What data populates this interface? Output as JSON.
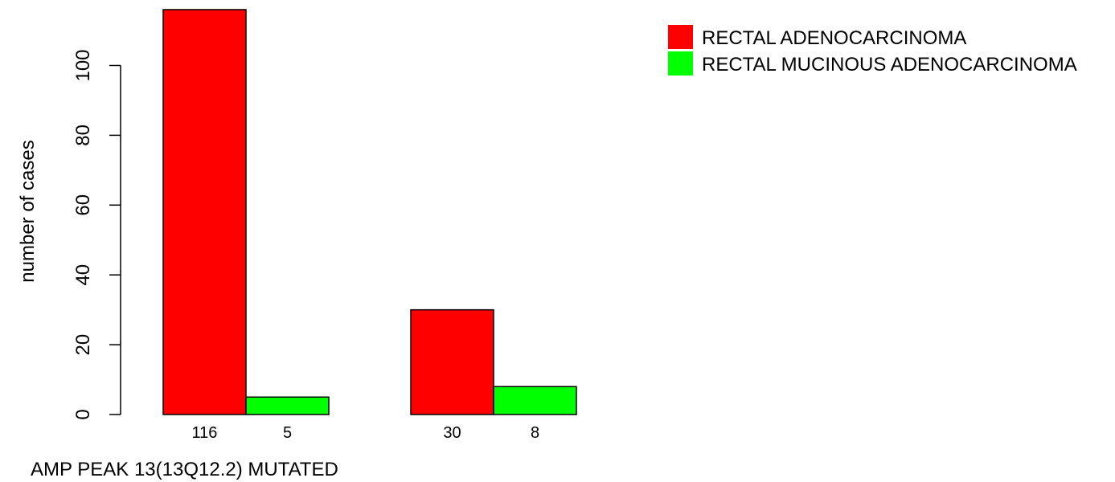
{
  "chart_data": {
    "type": "bar",
    "title": "",
    "xlabel": "AMP PEAK 13(13Q12.2) MUTATED",
    "ylabel": "number of cases",
    "ylim": [
      0,
      116
    ],
    "yticks": [
      0,
      20,
      40,
      60,
      80,
      100
    ],
    "grid": false,
    "legend_position": "top-right",
    "groups": [
      {
        "bars": [
          {
            "series": "RECTAL ADENOCARCINOMA",
            "value": 116,
            "label": "116"
          },
          {
            "series": "RECTAL MUCINOUS ADENOCARCINOMA",
            "value": 5,
            "label": "5"
          }
        ]
      },
      {
        "bars": [
          {
            "series": "RECTAL ADENOCARCINOMA",
            "value": 30,
            "label": "30"
          },
          {
            "series": "RECTAL MUCINOUS ADENOCARCINOMA",
            "value": 8,
            "label": "8"
          }
        ]
      }
    ],
    "series": [
      {
        "name": "RECTAL ADENOCARCINOMA",
        "color": "#ff0000"
      },
      {
        "name": "RECTAL MUCINOUS ADENOCARCINOMA",
        "color": "#00ff00"
      }
    ]
  }
}
